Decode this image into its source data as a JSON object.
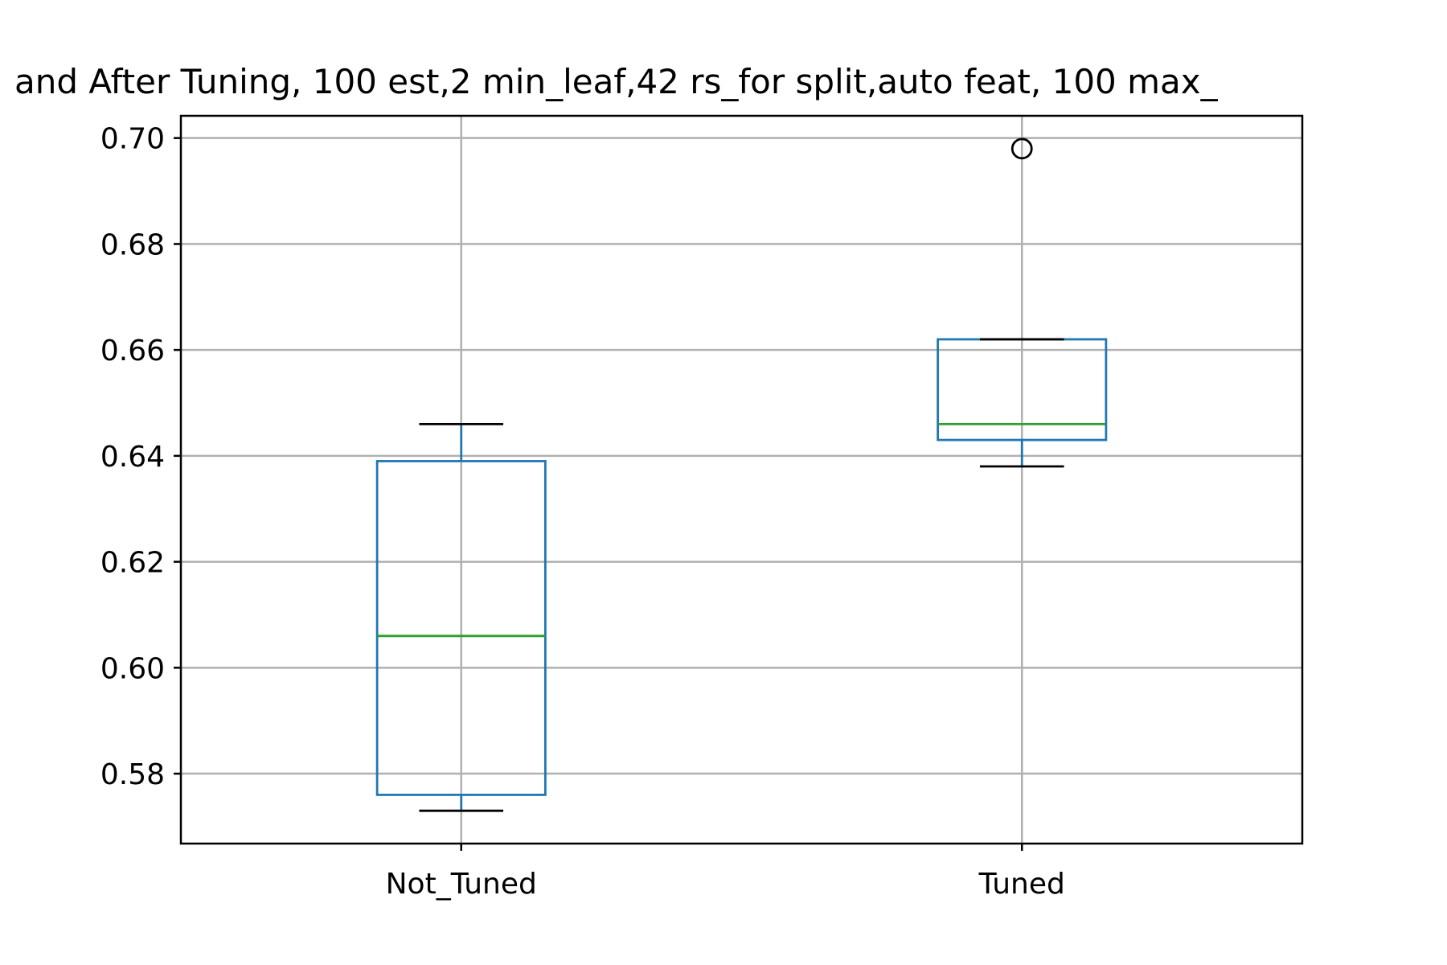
{
  "chart_data": {
    "type": "boxplot",
    "title": "and After Tuning, 100 est,2 min_leaf,42 rs_for split,auto feat, 100 max_",
    "xlabel": "",
    "ylabel": "",
    "categories": [
      "Not_Tuned",
      "Tuned"
    ],
    "boxes": [
      {
        "name": "Not_Tuned",
        "whisker_low": 0.573,
        "q1": 0.576,
        "median": 0.606,
        "q3": 0.639,
        "whisker_high": 0.646,
        "outliers": []
      },
      {
        "name": "Tuned",
        "whisker_low": 0.638,
        "q1": 0.643,
        "median": 0.646,
        "q3": 0.662,
        "whisker_high": 0.662,
        "outliers": [
          0.698
        ]
      }
    ],
    "yticks": [
      0.58,
      0.6,
      0.62,
      0.64,
      0.66,
      0.68,
      0.7
    ],
    "ytick_labels": [
      "0.58",
      "0.60",
      "0.62",
      "0.64",
      "0.66",
      "0.68",
      "0.70"
    ],
    "ylim": [
      0.5668,
      0.7042
    ],
    "grid": true,
    "colors": {
      "box": "#1f77b4",
      "median": "#2ca02c",
      "cap": "#000000",
      "grid": "#b0b0b0",
      "flier": "#000000"
    }
  }
}
